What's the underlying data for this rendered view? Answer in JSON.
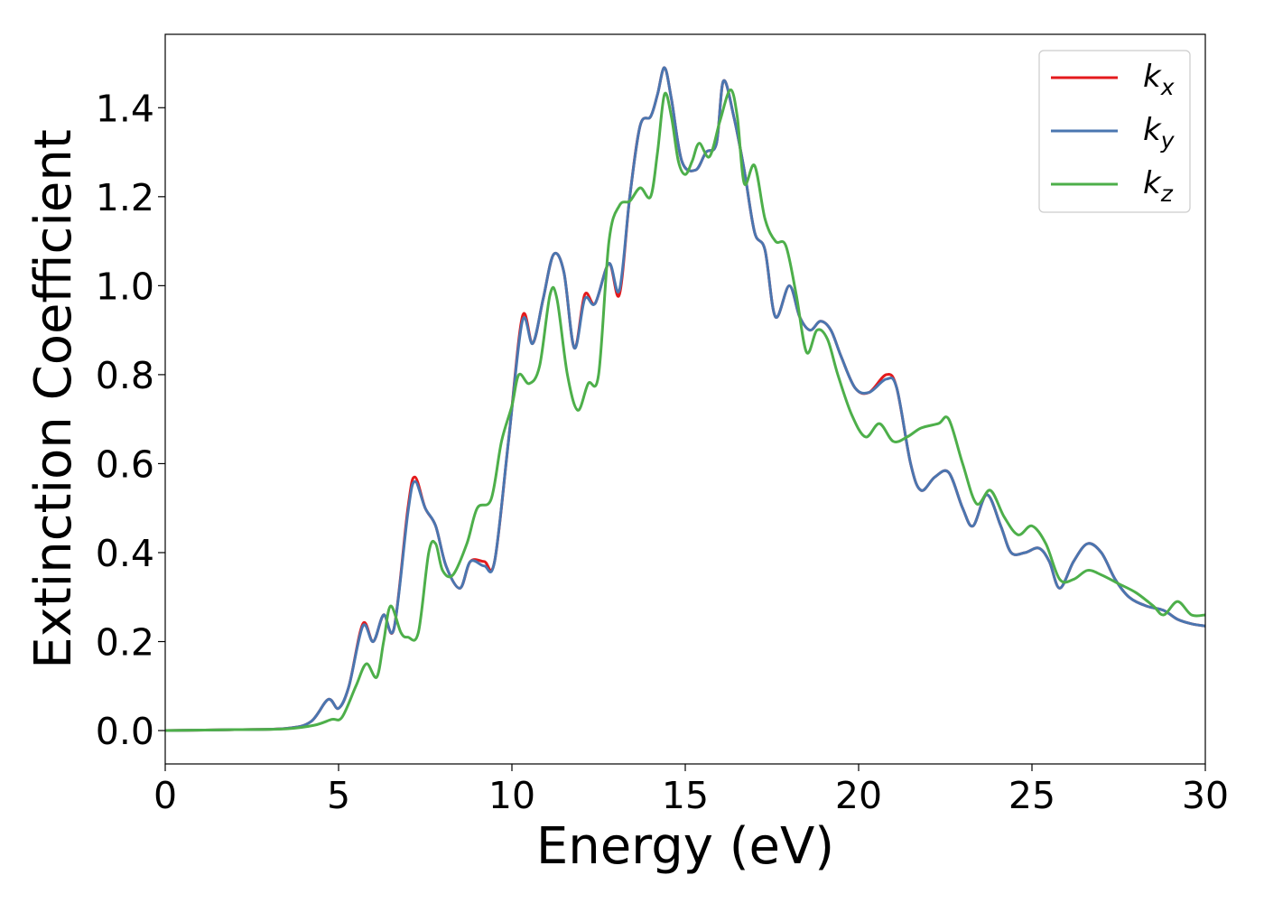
{
  "chart_data": {
    "type": "line",
    "xlabel": "Energy (eV)",
    "ylabel": "Extinction Coefficient",
    "xlim": [
      0,
      30
    ],
    "ylim": [
      -0.075,
      1.565
    ],
    "xticks": [
      0,
      5,
      10,
      15,
      20,
      25,
      30
    ],
    "yticks": [
      0.0,
      0.2,
      0.4,
      0.6,
      0.8,
      1.0,
      1.2,
      1.4
    ],
    "ytick_labels": [
      "0.0",
      "0.2",
      "0.4",
      "0.6",
      "0.8",
      "1.0",
      "1.2",
      "1.4"
    ],
    "grid": false,
    "legend_position": "top-right",
    "series": [
      {
        "name": "k_x",
        "label_main": "k",
        "label_sub": "x",
        "color": "#e41a1c",
        "x": [
          0,
          2,
          3.5,
          4.2,
          4.7,
          5.0,
          5.3,
          5.7,
          6.0,
          6.3,
          6.6,
          7.0,
          7.2,
          7.5,
          7.8,
          8.1,
          8.5,
          8.8,
          9.2,
          9.5,
          9.9,
          10.3,
          10.6,
          10.9,
          11.2,
          11.5,
          11.8,
          12.1,
          12.4,
          12.8,
          13.1,
          13.4,
          13.7,
          14.0,
          14.2,
          14.4,
          14.6,
          14.9,
          15.3,
          15.6,
          15.9,
          16.1,
          16.4,
          16.7,
          17.0,
          17.3,
          17.6,
          18.0,
          18.3,
          18.6,
          18.9,
          19.2,
          19.5,
          19.9,
          20.3,
          20.8,
          21.1,
          21.5,
          21.8,
          22.2,
          22.6,
          23.0,
          23.3,
          23.7,
          24.1,
          24.4,
          24.8,
          25.2,
          25.5,
          25.8,
          26.2,
          26.6,
          27.0,
          27.4,
          27.8,
          28.3,
          28.8,
          29.2,
          29.6,
          30
        ],
        "y": [
          0.0,
          0.002,
          0.005,
          0.02,
          0.07,
          0.05,
          0.1,
          0.24,
          0.2,
          0.26,
          0.23,
          0.5,
          0.57,
          0.5,
          0.46,
          0.37,
          0.32,
          0.38,
          0.38,
          0.38,
          0.65,
          0.93,
          0.87,
          0.97,
          1.07,
          1.03,
          0.86,
          0.98,
          0.96,
          1.05,
          0.98,
          1.2,
          1.36,
          1.38,
          1.43,
          1.49,
          1.42,
          1.28,
          1.26,
          1.3,
          1.32,
          1.46,
          1.38,
          1.26,
          1.12,
          1.08,
          0.93,
          1.0,
          0.93,
          0.9,
          0.92,
          0.9,
          0.84,
          0.77,
          0.76,
          0.8,
          0.77,
          0.6,
          0.54,
          0.57,
          0.58,
          0.5,
          0.46,
          0.53,
          0.46,
          0.4,
          0.4,
          0.41,
          0.38,
          0.32,
          0.38,
          0.42,
          0.4,
          0.34,
          0.3,
          0.28,
          0.27,
          0.25,
          0.24,
          0.235
        ]
      },
      {
        "name": "k_y",
        "label_main": "k",
        "label_sub": "y",
        "color": "#4a76b0",
        "x": [
          0,
          2,
          3.5,
          4.2,
          4.7,
          5.0,
          5.3,
          5.7,
          6.0,
          6.3,
          6.6,
          7.0,
          7.2,
          7.5,
          7.8,
          8.1,
          8.5,
          8.8,
          9.2,
          9.5,
          9.9,
          10.3,
          10.6,
          10.9,
          11.2,
          11.5,
          11.8,
          12.1,
          12.4,
          12.8,
          13.1,
          13.4,
          13.7,
          14.0,
          14.2,
          14.4,
          14.6,
          14.9,
          15.3,
          15.6,
          15.9,
          16.1,
          16.4,
          16.7,
          17.0,
          17.3,
          17.6,
          18.0,
          18.3,
          18.6,
          18.9,
          19.2,
          19.5,
          19.9,
          20.3,
          20.8,
          21.1,
          21.5,
          21.8,
          22.2,
          22.6,
          23.0,
          23.3,
          23.7,
          24.1,
          24.4,
          24.8,
          25.2,
          25.5,
          25.8,
          26.2,
          26.6,
          27.0,
          27.4,
          27.8,
          28.3,
          28.8,
          29.2,
          29.6,
          30
        ],
        "y": [
          0.0,
          0.002,
          0.005,
          0.02,
          0.07,
          0.05,
          0.1,
          0.235,
          0.2,
          0.26,
          0.23,
          0.49,
          0.56,
          0.5,
          0.46,
          0.37,
          0.32,
          0.38,
          0.37,
          0.38,
          0.65,
          0.92,
          0.87,
          0.97,
          1.07,
          1.03,
          0.86,
          0.97,
          0.96,
          1.05,
          0.99,
          1.2,
          1.36,
          1.38,
          1.43,
          1.49,
          1.42,
          1.28,
          1.26,
          1.3,
          1.32,
          1.46,
          1.38,
          1.26,
          1.12,
          1.08,
          0.93,
          1.0,
          0.93,
          0.9,
          0.92,
          0.9,
          0.84,
          0.77,
          0.76,
          0.79,
          0.77,
          0.6,
          0.54,
          0.57,
          0.58,
          0.5,
          0.46,
          0.53,
          0.46,
          0.4,
          0.4,
          0.41,
          0.38,
          0.32,
          0.38,
          0.42,
          0.4,
          0.34,
          0.3,
          0.28,
          0.27,
          0.25,
          0.24,
          0.235
        ]
      },
      {
        "name": "k_z",
        "label_main": "k",
        "label_sub": "z",
        "color": "#4daf4a",
        "x": [
          0,
          2,
          3.5,
          4.3,
          4.8,
          5.1,
          5.5,
          5.8,
          6.1,
          6.3,
          6.5,
          6.8,
          7.0,
          7.3,
          7.6,
          7.8,
          8.0,
          8.3,
          8.7,
          9.0,
          9.4,
          9.7,
          10.0,
          10.2,
          10.5,
          10.8,
          11.1,
          11.3,
          11.6,
          11.9,
          12.2,
          12.5,
          12.8,
          13.1,
          13.4,
          13.7,
          14.0,
          14.2,
          14.4,
          14.6,
          14.8,
          15.0,
          15.2,
          15.4,
          15.7,
          16.0,
          16.3,
          16.5,
          16.7,
          17.0,
          17.3,
          17.6,
          17.9,
          18.2,
          18.5,
          18.8,
          19.1,
          19.4,
          19.8,
          20.2,
          20.6,
          21.0,
          21.4,
          21.8,
          22.3,
          22.6,
          23.0,
          23.4,
          23.8,
          24.2,
          24.6,
          25.0,
          25.4,
          25.8,
          26.2,
          26.6,
          27.0,
          27.5,
          28.0,
          28.5,
          28.8,
          29.2,
          29.6,
          30
        ],
        "y": [
          0.0,
          0.002,
          0.004,
          0.012,
          0.025,
          0.03,
          0.1,
          0.15,
          0.12,
          0.2,
          0.28,
          0.22,
          0.21,
          0.22,
          0.4,
          0.42,
          0.36,
          0.35,
          0.42,
          0.5,
          0.52,
          0.65,
          0.73,
          0.8,
          0.78,
          0.82,
          0.98,
          0.97,
          0.8,
          0.72,
          0.78,
          0.8,
          1.1,
          1.18,
          1.19,
          1.22,
          1.2,
          1.3,
          1.43,
          1.38,
          1.28,
          1.25,
          1.28,
          1.32,
          1.29,
          1.37,
          1.44,
          1.38,
          1.23,
          1.27,
          1.15,
          1.1,
          1.09,
          0.98,
          0.85,
          0.9,
          0.88,
          0.8,
          0.71,
          0.66,
          0.69,
          0.65,
          0.66,
          0.68,
          0.69,
          0.7,
          0.6,
          0.51,
          0.54,
          0.48,
          0.44,
          0.46,
          0.42,
          0.34,
          0.34,
          0.36,
          0.35,
          0.33,
          0.31,
          0.28,
          0.26,
          0.29,
          0.26,
          0.26
        ]
      }
    ]
  }
}
